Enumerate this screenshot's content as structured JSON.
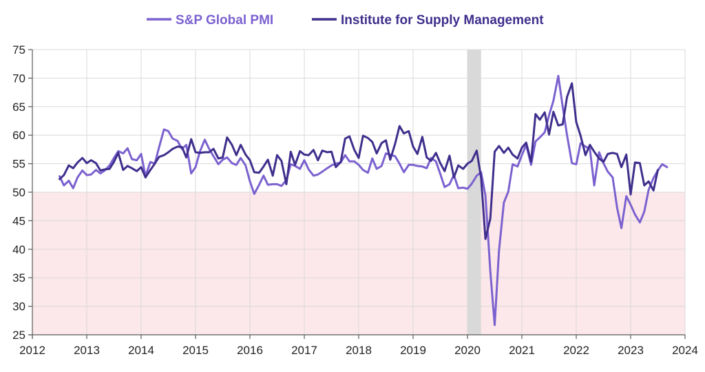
{
  "chart_data": {
    "type": "line",
    "title": "",
    "xlabel": "",
    "ylabel": "",
    "xlim": [
      2012,
      2024
    ],
    "ylim": [
      25,
      75
    ],
    "x_ticks": [
      2012,
      2013,
      2014,
      2015,
      2016,
      2017,
      2018,
      2019,
      2020,
      2021,
      2022,
      2023,
      2024
    ],
    "y_ticks": [
      25,
      30,
      35,
      40,
      45,
      50,
      55,
      60,
      65,
      70,
      75
    ],
    "grid": true,
    "legend_position": "top-center",
    "contraction_zone": {
      "from": 25,
      "to": 50,
      "color": "#fce8ea"
    },
    "recession_band": {
      "from": 2020.0,
      "to": 2020.25,
      "color": "#d9d9d9"
    },
    "series": [
      {
        "name": "S&P Global PMI",
        "color": "#7b61cf",
        "points": [
          [
            2012.5,
            52.8
          ],
          [
            2012.58,
            51.2
          ],
          [
            2012.67,
            52.0
          ],
          [
            2012.75,
            50.7
          ],
          [
            2012.83,
            52.6
          ],
          [
            2012.92,
            53.8
          ],
          [
            2013.0,
            53.0
          ],
          [
            2013.08,
            53.1
          ],
          [
            2013.17,
            53.9
          ],
          [
            2013.25,
            53.3
          ],
          [
            2013.33,
            53.8
          ],
          [
            2013.42,
            54.7
          ],
          [
            2013.5,
            56.0
          ],
          [
            2013.58,
            57.2
          ],
          [
            2013.67,
            56.8
          ],
          [
            2013.75,
            57.7
          ],
          [
            2013.83,
            55.8
          ],
          [
            2013.92,
            55.6
          ],
          [
            2014.0,
            56.7
          ],
          [
            2014.08,
            52.8
          ],
          [
            2014.17,
            55.3
          ],
          [
            2014.25,
            55.0
          ],
          [
            2014.33,
            57.9
          ],
          [
            2014.42,
            61.0
          ],
          [
            2014.5,
            60.7
          ],
          [
            2014.58,
            59.4
          ],
          [
            2014.67,
            59.0
          ],
          [
            2014.75,
            57.6
          ],
          [
            2014.83,
            58.3
          ],
          [
            2014.92,
            53.3
          ],
          [
            2015.0,
            54.4
          ],
          [
            2015.08,
            57.1
          ],
          [
            2015.17,
            59.2
          ],
          [
            2015.25,
            57.6
          ],
          [
            2015.33,
            56.3
          ],
          [
            2015.42,
            54.9
          ],
          [
            2015.5,
            55.7
          ],
          [
            2015.58,
            56.1
          ],
          [
            2015.67,
            55.1
          ],
          [
            2015.75,
            54.8
          ],
          [
            2015.83,
            56.0
          ],
          [
            2015.92,
            54.7
          ],
          [
            2016.0,
            51.9
          ],
          [
            2016.08,
            49.7
          ],
          [
            2016.17,
            51.3
          ],
          [
            2016.25,
            52.9
          ],
          [
            2016.33,
            51.3
          ],
          [
            2016.42,
            51.4
          ],
          [
            2016.5,
            51.4
          ],
          [
            2016.58,
            51.1
          ],
          [
            2016.67,
            52.1
          ],
          [
            2016.75,
            54.9
          ],
          [
            2016.83,
            54.6
          ],
          [
            2016.92,
            54.1
          ],
          [
            2017.0,
            55.6
          ],
          [
            2017.08,
            54.0
          ],
          [
            2017.17,
            52.9
          ],
          [
            2017.25,
            53.1
          ],
          [
            2017.33,
            53.6
          ],
          [
            2017.42,
            54.2
          ],
          [
            2017.5,
            54.7
          ],
          [
            2017.58,
            55.0
          ],
          [
            2017.67,
            55.2
          ],
          [
            2017.75,
            56.5
          ],
          [
            2017.83,
            55.4
          ],
          [
            2017.92,
            55.4
          ],
          [
            2018.0,
            54.8
          ],
          [
            2018.08,
            53.9
          ],
          [
            2018.17,
            53.4
          ],
          [
            2018.25,
            55.9
          ],
          [
            2018.33,
            54.1
          ],
          [
            2018.42,
            54.6
          ],
          [
            2018.5,
            56.8
          ],
          [
            2018.58,
            56.6
          ],
          [
            2018.67,
            56.3
          ],
          [
            2018.75,
            55.0
          ],
          [
            2018.83,
            53.5
          ],
          [
            2018.92,
            54.8
          ],
          [
            2019.0,
            54.8
          ],
          [
            2019.08,
            54.6
          ],
          [
            2019.17,
            54.5
          ],
          [
            2019.25,
            54.2
          ],
          [
            2019.33,
            56.0
          ],
          [
            2019.42,
            55.4
          ],
          [
            2019.5,
            53.2
          ],
          [
            2019.58,
            50.9
          ],
          [
            2019.67,
            51.4
          ],
          [
            2019.75,
            53.0
          ],
          [
            2019.83,
            50.7
          ],
          [
            2019.92,
            50.8
          ],
          [
            2020.0,
            50.6
          ],
          [
            2020.08,
            51.5
          ],
          [
            2020.17,
            52.9
          ],
          [
            2020.25,
            53.5
          ],
          [
            2020.33,
            49.4
          ],
          [
            2020.42,
            36.1
          ],
          [
            2020.5,
            26.7
          ],
          [
            2020.58,
            39.8
          ],
          [
            2020.67,
            48.2
          ],
          [
            2020.75,
            50.1
          ],
          [
            2020.83,
            54.9
          ],
          [
            2020.92,
            54.5
          ],
          [
            2021.0,
            56.5
          ],
          [
            2021.08,
            58.3
          ],
          [
            2021.17,
            54.8
          ],
          [
            2021.25,
            58.9
          ],
          [
            2021.33,
            59.6
          ],
          [
            2021.42,
            60.5
          ],
          [
            2021.5,
            63.5
          ],
          [
            2021.58,
            66.0
          ],
          [
            2021.67,
            70.4
          ],
          [
            2021.75,
            65.0
          ],
          [
            2021.83,
            60.0
          ],
          [
            2021.92,
            55.1
          ],
          [
            2022.0,
            54.9
          ],
          [
            2022.08,
            58.6
          ],
          [
            2022.17,
            58.0
          ],
          [
            2022.25,
            57.6
          ],
          [
            2022.33,
            51.2
          ],
          [
            2022.42,
            57.0
          ],
          [
            2022.5,
            55.1
          ],
          [
            2022.58,
            53.6
          ],
          [
            2022.67,
            52.6
          ],
          [
            2022.75,
            47.3
          ],
          [
            2022.83,
            43.7
          ],
          [
            2022.92,
            49.3
          ],
          [
            2023.0,
            47.8
          ],
          [
            2023.08,
            46.1
          ],
          [
            2023.17,
            44.7
          ],
          [
            2023.25,
            46.6
          ],
          [
            2023.33,
            50.4
          ],
          [
            2023.42,
            52.5
          ],
          [
            2023.5,
            53.8
          ],
          [
            2023.58,
            54.9
          ],
          [
            2023.67,
            54.4
          ]
        ]
      },
      {
        "name": "Institute for Supply Management",
        "color": "#3f2e8c",
        "points": [
          [
            2012.5,
            52.3
          ],
          [
            2012.58,
            53.0
          ],
          [
            2012.67,
            54.7
          ],
          [
            2012.75,
            54.2
          ],
          [
            2012.83,
            55.2
          ],
          [
            2012.92,
            56.0
          ],
          [
            2013.0,
            55.1
          ],
          [
            2013.08,
            55.6
          ],
          [
            2013.17,
            55.1
          ],
          [
            2013.25,
            53.8
          ],
          [
            2013.33,
            54.0
          ],
          [
            2013.42,
            54.1
          ],
          [
            2013.5,
            55.3
          ],
          [
            2013.58,
            56.9
          ],
          [
            2013.67,
            53.9
          ],
          [
            2013.75,
            54.6
          ],
          [
            2013.83,
            54.2
          ],
          [
            2013.92,
            53.7
          ],
          [
            2014.0,
            54.4
          ],
          [
            2014.08,
            52.6
          ],
          [
            2014.17,
            53.9
          ],
          [
            2014.25,
            55.0
          ],
          [
            2014.33,
            56.2
          ],
          [
            2014.42,
            56.5
          ],
          [
            2014.5,
            57.0
          ],
          [
            2014.58,
            57.6
          ],
          [
            2014.67,
            58.0
          ],
          [
            2014.75,
            57.9
          ],
          [
            2014.83,
            56.1
          ],
          [
            2014.92,
            59.3
          ],
          [
            2015.0,
            57.0
          ],
          [
            2015.08,
            56.9
          ],
          [
            2015.17,
            57.0
          ],
          [
            2015.25,
            57.0
          ],
          [
            2015.33,
            57.6
          ],
          [
            2015.42,
            55.9
          ],
          [
            2015.5,
            56.1
          ],
          [
            2015.58,
            59.6
          ],
          [
            2015.67,
            58.3
          ],
          [
            2015.75,
            56.5
          ],
          [
            2015.83,
            58.3
          ],
          [
            2015.92,
            56.6
          ],
          [
            2016.0,
            55.6
          ],
          [
            2016.08,
            53.5
          ],
          [
            2016.17,
            53.4
          ],
          [
            2016.25,
            54.5
          ],
          [
            2016.33,
            55.7
          ],
          [
            2016.42,
            52.9
          ],
          [
            2016.5,
            56.5
          ],
          [
            2016.58,
            55.5
          ],
          [
            2016.67,
            51.4
          ],
          [
            2016.75,
            57.1
          ],
          [
            2016.83,
            54.8
          ],
          [
            2016.92,
            57.2
          ],
          [
            2017.0,
            56.6
          ],
          [
            2017.08,
            56.5
          ],
          [
            2017.17,
            57.4
          ],
          [
            2017.25,
            55.6
          ],
          [
            2017.33,
            57.3
          ],
          [
            2017.42,
            57.0
          ],
          [
            2017.5,
            57.1
          ],
          [
            2017.58,
            54.4
          ],
          [
            2017.67,
            55.3
          ],
          [
            2017.75,
            59.4
          ],
          [
            2017.83,
            59.8
          ],
          [
            2017.92,
            57.4
          ],
          [
            2018.0,
            56.0
          ],
          [
            2018.08,
            59.9
          ],
          [
            2018.17,
            59.5
          ],
          [
            2018.25,
            58.8
          ],
          [
            2018.33,
            56.8
          ],
          [
            2018.42,
            58.6
          ],
          [
            2018.5,
            59.1
          ],
          [
            2018.58,
            55.7
          ],
          [
            2018.67,
            58.5
          ],
          [
            2018.75,
            61.6
          ],
          [
            2018.83,
            60.3
          ],
          [
            2018.92,
            60.7
          ],
          [
            2019.0,
            58.0
          ],
          [
            2019.08,
            56.7
          ],
          [
            2019.17,
            59.7
          ],
          [
            2019.25,
            56.1
          ],
          [
            2019.33,
            55.5
          ],
          [
            2019.42,
            56.9
          ],
          [
            2019.5,
            55.1
          ],
          [
            2019.58,
            53.7
          ],
          [
            2019.67,
            56.4
          ],
          [
            2019.75,
            52.6
          ],
          [
            2019.83,
            54.7
          ],
          [
            2019.92,
            54.1
          ],
          [
            2020.0,
            55.0
          ],
          [
            2020.08,
            55.5
          ],
          [
            2020.17,
            57.3
          ],
          [
            2020.25,
            52.5
          ],
          [
            2020.33,
            41.8
          ],
          [
            2020.42,
            45.4
          ],
          [
            2020.5,
            57.1
          ],
          [
            2020.58,
            58.1
          ],
          [
            2020.67,
            56.9
          ],
          [
            2020.75,
            57.8
          ],
          [
            2020.83,
            56.6
          ],
          [
            2020.92,
            55.9
          ],
          [
            2021.0,
            57.8
          ],
          [
            2021.08,
            58.7
          ],
          [
            2021.17,
            55.3
          ],
          [
            2021.25,
            63.7
          ],
          [
            2021.33,
            62.7
          ],
          [
            2021.42,
            64.0
          ],
          [
            2021.5,
            60.1
          ],
          [
            2021.58,
            64.1
          ],
          [
            2021.67,
            61.7
          ],
          [
            2021.75,
            61.9
          ],
          [
            2021.83,
            66.7
          ],
          [
            2021.92,
            69.1
          ],
          [
            2022.0,
            62.3
          ],
          [
            2022.08,
            59.9
          ],
          [
            2022.17,
            56.5
          ],
          [
            2022.25,
            58.3
          ],
          [
            2022.33,
            57.1
          ],
          [
            2022.42,
            55.9
          ],
          [
            2022.5,
            55.3
          ],
          [
            2022.58,
            56.7
          ],
          [
            2022.67,
            56.9
          ],
          [
            2022.75,
            56.7
          ],
          [
            2022.83,
            54.4
          ],
          [
            2022.92,
            56.6
          ],
          [
            2023.0,
            49.6
          ],
          [
            2023.08,
            55.2
          ],
          [
            2023.17,
            55.1
          ],
          [
            2023.25,
            51.2
          ],
          [
            2023.33,
            51.9
          ],
          [
            2023.42,
            50.3
          ],
          [
            2023.5,
            53.9
          ]
        ]
      }
    ]
  }
}
